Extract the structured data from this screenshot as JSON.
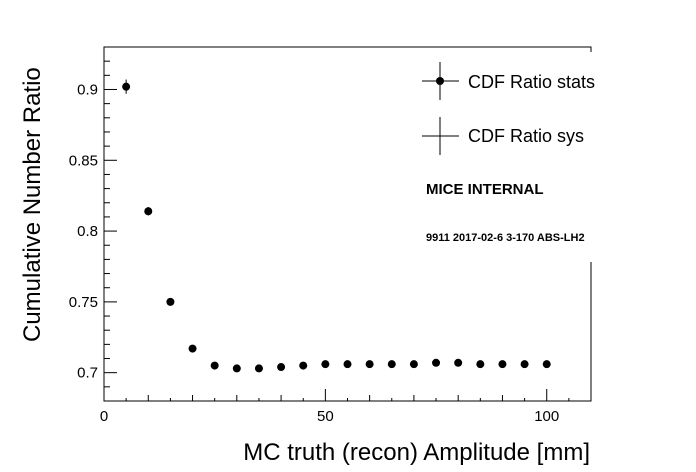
{
  "chart_data": {
    "type": "scatter",
    "title": "",
    "xlabel": "MC truth (recon) Amplitude [mm]",
    "ylabel": "Cumulative Number Ratio",
    "xlim": [
      0,
      110
    ],
    "ylim": [
      0.68,
      0.93
    ],
    "x_ticks": [
      0,
      50,
      100
    ],
    "x_tick_labels": [
      "0",
      "50",
      "100"
    ],
    "y_ticks": [
      0.7,
      0.75,
      0.8,
      0.85,
      0.9
    ],
    "y_tick_labels": [
      "0.7",
      "0.75",
      "0.8",
      "0.85",
      "0.9"
    ],
    "grid": false,
    "legend_position": "top-right",
    "series": [
      {
        "name": "CDF Ratio stats",
        "x": [
          5,
          10,
          15,
          20,
          25,
          30,
          35,
          40,
          45,
          50,
          55,
          60,
          65,
          70,
          75,
          80,
          85,
          90,
          95,
          100
        ],
        "y": [
          0.902,
          0.814,
          0.75,
          0.717,
          0.705,
          0.703,
          0.703,
          0.704,
          0.705,
          0.706,
          0.706,
          0.706,
          0.706,
          0.706,
          0.707,
          0.707,
          0.706,
          0.706,
          0.706,
          0.706
        ],
        "yerr": [
          0.005,
          0.003,
          0.002,
          0.002,
          0.002,
          0.002,
          0.002,
          0.002,
          0.002,
          0.002,
          0.002,
          0.002,
          0.002,
          0.002,
          0.002,
          0.002,
          0.002,
          0.002,
          0.002,
          0.002
        ]
      },
      {
        "name": "CDF Ratio sys",
        "x": [],
        "y": []
      }
    ],
    "annotations": [
      "MICE INTERNAL",
      "9911 2017-02-6 3-170 ABS-LH2"
    ]
  }
}
